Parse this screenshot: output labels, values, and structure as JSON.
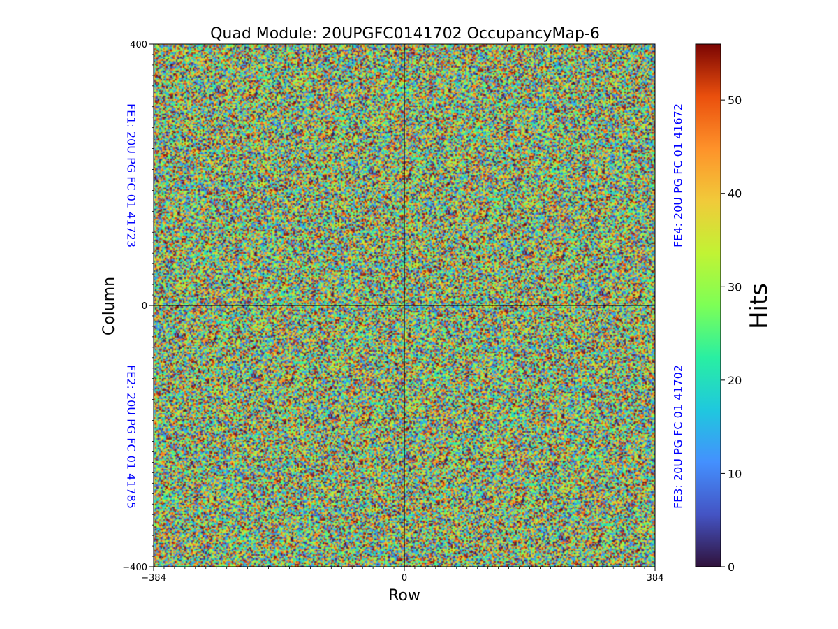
{
  "chart_data": {
    "type": "heatmap",
    "title": "Quad Module: 20UPGFC0141702 OccupancyMap-6",
    "xlabel": "Row",
    "ylabel": "Column",
    "xlim": [
      -384,
      384
    ],
    "ylim": [
      -400,
      400
    ],
    "x_ticks": [
      {
        "value": -384,
        "label": "−384"
      },
      {
        "value": 0,
        "label": "0"
      },
      {
        "value": 384,
        "label": "384"
      }
    ],
    "y_ticks": [
      {
        "value": -400,
        "label": "−400"
      },
      {
        "value": 0,
        "label": "0"
      },
      {
        "value": 400,
        "label": "400"
      }
    ],
    "colorbar": {
      "label": "Hits",
      "colormap": "turbo",
      "range": [
        0,
        56
      ],
      "ticks": [
        0,
        10,
        20,
        30,
        40,
        50
      ]
    },
    "value_distribution": "uniform random per pixel over the full colour range, no visible structure",
    "quadrant_divider_x": 0,
    "quadrant_divider_y": 0,
    "annotations": [
      {
        "text": "FE1: 20U PG FC 01 41723",
        "quadrant": "top-left",
        "color": "#0000ff"
      },
      {
        "text": "FE2: 20U PG FC 01 41785",
        "quadrant": "bottom-left",
        "color": "#0000ff"
      },
      {
        "text": "FE3: 20U PG FC 01 41702",
        "quadrant": "bottom-right",
        "color": "#0000ff"
      },
      {
        "text": "FE4: 20U PG FC 01 41672",
        "quadrant": "top-right",
        "color": "#0000ff"
      }
    ]
  }
}
